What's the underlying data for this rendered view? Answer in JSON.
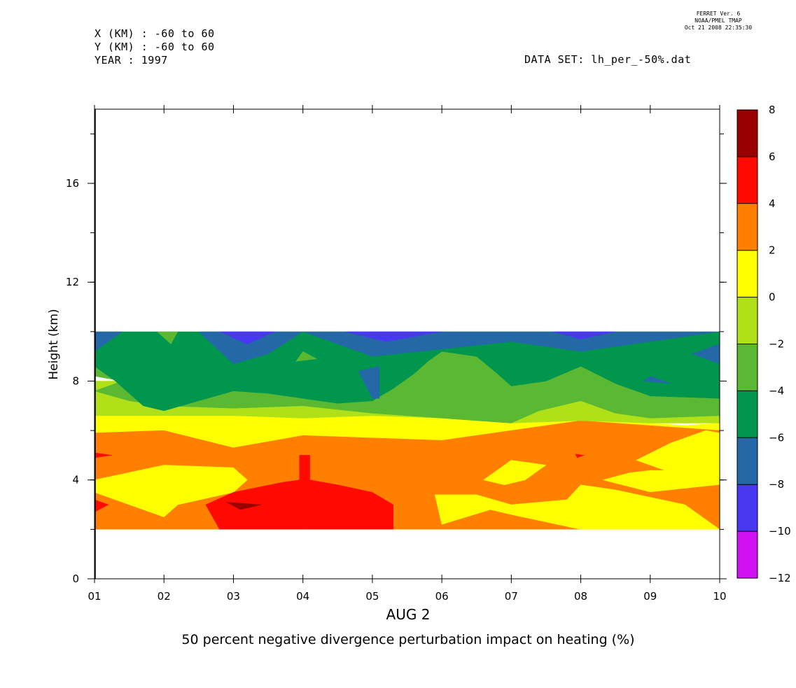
{
  "header": {
    "x_range": "X (KM) : -60 to 60",
    "y_range": "Y (KM) : -60 to 60",
    "year": "YEAR : 1997",
    "dataset": "DATA SET: lh_per_-50%.dat",
    "program_line1": "FERRET Ver. 6",
    "program_line2": "NOAA/PMEL TMAP",
    "program_line3": "Oct 21 2008 22:35:30"
  },
  "chart_data": {
    "type": "heatmap",
    "subtype": "filled-contour",
    "title": "50 percent negative divergence perturbation impact on heating (%)",
    "xlabel": "AUG   2",
    "ylabel": "Height (km)",
    "x_ticks": [
      "01",
      "02",
      "03",
      "04",
      "05",
      "06",
      "07",
      "08",
      "09",
      "10"
    ],
    "y_ticks": [
      "0",
      "4",
      "8",
      "12",
      "16"
    ],
    "xlim": [
      1,
      10
    ],
    "ylim": [
      0,
      19
    ],
    "data_height_range_km": [
      2,
      10
    ],
    "colorbar": {
      "levels": [
        8,
        6,
        4,
        2,
        0,
        -2,
        -4,
        -6,
        -8,
        -10,
        -12
      ],
      "tick_labels": [
        "8",
        "6",
        "4",
        "2",
        "0",
        "−2",
        "−4",
        "−6",
        "−8",
        "−10",
        "−12"
      ],
      "colors": [
        "#990000",
        "#ff0a00",
        "#ff8000",
        "#ffff00",
        "#b0e018",
        "#5ab832",
        "#00964e",
        "#2468a8",
        "#4838f0",
        "#d010f0"
      ]
    },
    "bands": [
      {
        "level": "0 to 2",
        "color": "#ffff00",
        "poly": [
          [
            1,
            2
          ],
          [
            10,
            2
          ],
          [
            10,
            6.3
          ],
          [
            9.5,
            6.2
          ],
          [
            9,
            6.3
          ],
          [
            8,
            6.4
          ],
          [
            7,
            6.3
          ],
          [
            6,
            6.5
          ],
          [
            5,
            6.6
          ],
          [
            4,
            6.5
          ],
          [
            3,
            6.6
          ],
          [
            2,
            6.6
          ],
          [
            1,
            6.6
          ]
        ]
      },
      {
        "level": "2 to 4",
        "color": "#ff8000",
        "poly": [
          [
            1,
            2
          ],
          [
            10,
            2
          ],
          [
            10,
            3.8
          ],
          [
            9,
            3.5
          ],
          [
            8.3,
            4
          ],
          [
            8.7,
            4.3
          ],
          [
            9,
            4.4
          ],
          [
            10,
            4.4
          ],
          [
            10,
            6
          ],
          [
            8,
            6.4
          ],
          [
            7,
            6
          ],
          [
            6,
            5.6
          ],
          [
            5,
            5.7
          ],
          [
            4,
            5.8
          ],
          [
            3,
            5.3
          ],
          [
            2,
            6
          ],
          [
            1,
            5.9
          ]
        ]
      },
      {
        "level": "0 to 2",
        "color": "#ffff00",
        "poly": [
          [
            1,
            4
          ],
          [
            2,
            4.6
          ],
          [
            3,
            4.5
          ],
          [
            3.2,
            4
          ],
          [
            3,
            3.5
          ],
          [
            2.2,
            3
          ],
          [
            2,
            2.5
          ],
          [
            1,
            3.5
          ]
        ]
      },
      {
        "level": "0 to 2",
        "color": "#ffff00",
        "poly": [
          [
            6,
            2.2
          ],
          [
            6.7,
            2.8
          ],
          [
            7,
            2.6
          ],
          [
            8,
            2
          ],
          [
            10,
            2
          ],
          [
            9.5,
            3
          ],
          [
            8.5,
            3.6
          ],
          [
            8,
            3.8
          ],
          [
            7.8,
            3.2
          ],
          [
            7,
            3
          ],
          [
            6.5,
            3.4
          ],
          [
            5.9,
            3.4
          ]
        ]
      },
      {
        "level": "0 to 2",
        "color": "#ffff00",
        "poly": [
          [
            6.6,
            4
          ],
          [
            7,
            4.8
          ],
          [
            7.5,
            4.6
          ],
          [
            7.2,
            4
          ],
          [
            6.9,
            3.8
          ]
        ]
      },
      {
        "level": "0 to 2",
        "color": "#ffff00",
        "poly": [
          [
            8.8,
            4.8
          ],
          [
            9.3,
            5.5
          ],
          [
            9.8,
            6
          ],
          [
            10,
            5.9
          ],
          [
            10,
            4.2
          ],
          [
            9.3,
            4.3
          ]
        ]
      },
      {
        "level": "4 to 6",
        "color": "#ff0a00",
        "poly": [
          [
            2.6,
            3
          ],
          [
            3,
            3.5
          ],
          [
            3.7,
            3.9
          ],
          [
            3.95,
            4
          ],
          [
            3.95,
            5
          ],
          [
            4.1,
            5
          ],
          [
            4.1,
            4
          ],
          [
            4.5,
            3.8
          ],
          [
            5,
            3.5
          ],
          [
            5.3,
            3
          ],
          [
            5.3,
            2
          ],
          [
            4,
            2
          ],
          [
            2.8,
            2
          ]
        ]
      },
      {
        "level": "4 to 6",
        "color": "#ff0a00",
        "poly": [
          [
            1,
            5.1
          ],
          [
            1.25,
            5
          ],
          [
            1,
            4.9
          ]
        ]
      },
      {
        "level": "4 to 6",
        "color": "#ff0a00",
        "poly": [
          [
            1,
            3.2
          ],
          [
            1.2,
            3
          ],
          [
            1,
            2.7
          ]
        ]
      },
      {
        "level": "4 to 6",
        "color": "#ff0a00",
        "poly": [
          [
            7.92,
            5.05
          ],
          [
            8.05,
            5
          ],
          [
            7.95,
            4.9
          ]
        ]
      },
      {
        "level": "6 to 8",
        "color": "#990000",
        "poly": [
          [
            2.9,
            3.1
          ],
          [
            3.4,
            3
          ],
          [
            3.1,
            2.8
          ]
        ]
      },
      {
        "level": "-2 to 0",
        "color": "#b0e018",
        "poly": [
          [
            1,
            6.6
          ],
          [
            2,
            6.6
          ],
          [
            3,
            6.6
          ],
          [
            4,
            6.5
          ],
          [
            5,
            6.6
          ],
          [
            6,
            6.5
          ],
          [
            7,
            6.3
          ],
          [
            8,
            6.4
          ],
          [
            9,
            6.3
          ],
          [
            10,
            6.3
          ],
          [
            10,
            8
          ],
          [
            1,
            8
          ]
        ]
      },
      {
        "level": "-4 to -2",
        "color": "#5ab832",
        "poly": [
          [
            1,
            7.6
          ],
          [
            1.5,
            7.2
          ],
          [
            2,
            7
          ],
          [
            3,
            6.9
          ],
          [
            4,
            7
          ],
          [
            5,
            6.7
          ],
          [
            6,
            6.5
          ],
          [
            7,
            6.3
          ],
          [
            7.4,
            6.8
          ],
          [
            8,
            7.2
          ],
          [
            8.5,
            6.7
          ],
          [
            9,
            6.5
          ],
          [
            10,
            6.6
          ],
          [
            10,
            10
          ],
          [
            1,
            10
          ],
          [
            1,
            8.2
          ],
          [
            1.4,
            8
          ]
        ]
      },
      {
        "level": "-6 to -4",
        "color": "#00964e",
        "poly": [
          [
            1,
            8.6
          ],
          [
            1.3,
            8
          ],
          [
            1.5,
            7.5
          ],
          [
            1.7,
            7
          ],
          [
            2,
            6.8
          ],
          [
            2.5,
            7.2
          ],
          [
            3,
            7.6
          ],
          [
            3.5,
            7.5
          ],
          [
            4,
            7.3
          ],
          [
            4.5,
            7.1
          ],
          [
            5,
            7.2
          ],
          [
            5.3,
            7.7
          ],
          [
            5.6,
            8.3
          ],
          [
            5.8,
            8.8
          ],
          [
            6,
            9.2
          ],
          [
            6.5,
            9
          ],
          [
            6.8,
            8.3
          ],
          [
            7,
            7.8
          ],
          [
            7.5,
            8
          ],
          [
            8,
            8.6
          ],
          [
            8.5,
            7.9
          ],
          [
            9,
            7.4
          ],
          [
            10,
            7.3
          ],
          [
            10,
            10
          ],
          [
            1,
            10
          ]
        ]
      },
      {
        "level": "-4 to -2",
        "color": "#5ab832",
        "poly": [
          [
            4,
            9.2
          ],
          [
            4.2,
            8.9
          ],
          [
            3.9,
            8.8
          ]
        ]
      },
      {
        "level": "-4 to -2",
        "color": "#5ab832",
        "poly": [
          [
            1.9,
            10
          ],
          [
            2.1,
            9.5
          ],
          [
            2.2,
            10
          ]
        ]
      },
      {
        "level": "-8 to -6",
        "color": "#2468a8",
        "poly": [
          [
            1,
            9.2
          ],
          [
            1.4,
            10
          ],
          [
            1,
            10
          ]
        ]
      },
      {
        "level": "-8 to -6",
        "color": "#2468a8",
        "poly": [
          [
            2.5,
            10
          ],
          [
            3,
            8.7
          ],
          [
            3.5,
            9.1
          ],
          [
            4,
            10
          ]
        ]
      },
      {
        "level": "-8 to -6",
        "color": "#2468a8",
        "poly": [
          [
            4,
            10
          ],
          [
            5,
            9
          ],
          [
            6,
            9.3
          ],
          [
            7,
            9.6
          ],
          [
            8,
            9.2
          ],
          [
            9,
            9.6
          ],
          [
            10,
            10
          ]
        ]
      },
      {
        "level": "-8 to -6",
        "color": "#2468a8",
        "poly": [
          [
            9.6,
            9.1
          ],
          [
            10,
            9.5
          ],
          [
            10,
            8.7
          ]
        ]
      },
      {
        "level": "-8 to -6",
        "color": "#2468a8",
        "poly": [
          [
            4.8,
            8.4
          ],
          [
            5,
            7.3
          ],
          [
            5.1,
            7.3
          ],
          [
            5.1,
            8.6
          ]
        ]
      },
      {
        "level": "-8 to -6",
        "color": "#2468a8",
        "poly": [
          [
            8.9,
            8
          ],
          [
            9,
            8.2
          ],
          [
            9.3,
            7.9
          ]
        ]
      },
      {
        "level": "-10 to -8",
        "color": "#4838f0",
        "poly": [
          [
            2.8,
            10
          ],
          [
            3.2,
            9.5
          ],
          [
            3.6,
            10
          ]
        ]
      },
      {
        "level": "-10 to -8",
        "color": "#4838f0",
        "poly": [
          [
            4.6,
            10
          ],
          [
            5.2,
            9.6
          ],
          [
            6,
            10
          ]
        ]
      },
      {
        "level": "-10 to -8",
        "color": "#4838f0",
        "poly": [
          [
            7.6,
            10
          ],
          [
            8,
            9.7
          ],
          [
            8.5,
            10
          ]
        ]
      }
    ]
  }
}
